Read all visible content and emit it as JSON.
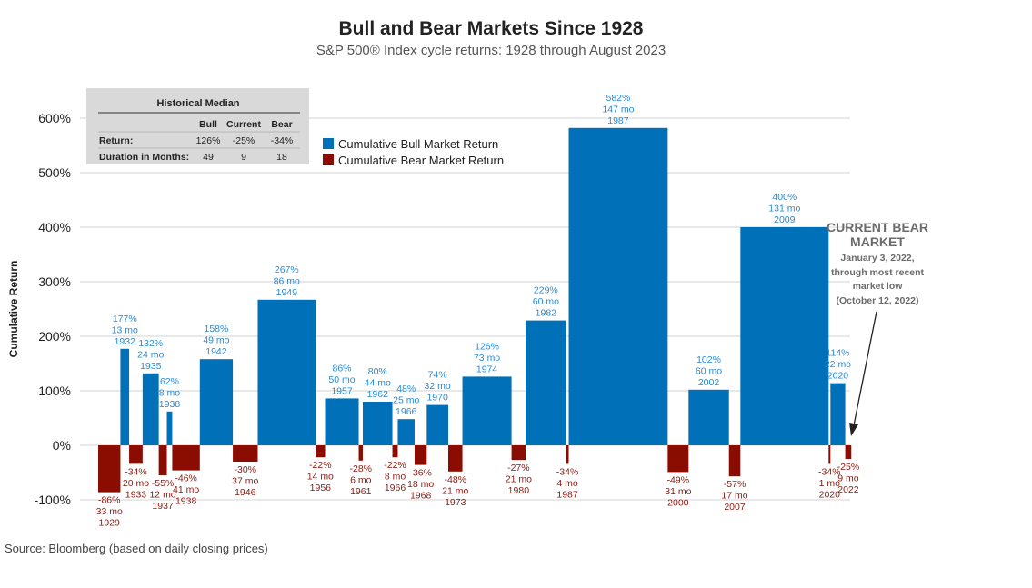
{
  "chart_data": {
    "type": "bar",
    "title": "Bull and Bear Markets Since 1928",
    "subtitle": "S&P 500® Index cycle returns: 1928 through August 2023",
    "ylabel": "Cumulative Return",
    "xlabel": "",
    "ylim": [
      -100,
      600
    ],
    "yticks": [
      "-100%",
      "0%",
      "100%",
      "200%",
      "300%",
      "400%",
      "500%",
      "600%"
    ],
    "grid": true,
    "legend_placement": "top-left",
    "legend": [
      {
        "name": "Cumulative Bull Market Return",
        "color": "#0070b8"
      },
      {
        "name": "Cumulative Bear Market Return",
        "color": "#8b0c00"
      }
    ],
    "colors": {
      "bull": "#0070b8",
      "bear": "#8b0c00",
      "bull_label": "#2a8ad4",
      "bear_label": "#8b1a10"
    },
    "periods": [
      {
        "kind": "bear",
        "return": -86,
        "months": 33,
        "year": 1929
      },
      {
        "kind": "bull",
        "return": 177,
        "months": 13,
        "year": 1932
      },
      {
        "kind": "bear",
        "return": -34,
        "months": 20,
        "year": 1933
      },
      {
        "kind": "bull",
        "return": 132,
        "months": 24,
        "year": 1935
      },
      {
        "kind": "bear",
        "return": -55,
        "months": 12,
        "year": 1937
      },
      {
        "kind": "bull",
        "return": 62,
        "months": 8,
        "year": 1938
      },
      {
        "kind": "bear",
        "return": -46,
        "months": 41,
        "year": 1938
      },
      {
        "kind": "bull",
        "return": 158,
        "months": 49,
        "year": 1942
      },
      {
        "kind": "bear",
        "return": -30,
        "months": 37,
        "year": 1946
      },
      {
        "kind": "bull",
        "return": 267,
        "months": 86,
        "year": 1949
      },
      {
        "kind": "bear",
        "return": -22,
        "months": 14,
        "year": 1956
      },
      {
        "kind": "bull",
        "return": 86,
        "months": 50,
        "year": 1957
      },
      {
        "kind": "bear",
        "return": -28,
        "months": 6,
        "year": 1961
      },
      {
        "kind": "bull",
        "return": 80,
        "months": 44,
        "year": 1962
      },
      {
        "kind": "bear",
        "return": -22,
        "months": 8,
        "year": 1966
      },
      {
        "kind": "bull",
        "return": 48,
        "months": 25,
        "year": 1966
      },
      {
        "kind": "bear",
        "return": -36,
        "months": 18,
        "year": 1968
      },
      {
        "kind": "bull",
        "return": 74,
        "months": 32,
        "year": 1970
      },
      {
        "kind": "bear",
        "return": -48,
        "months": 21,
        "year": 1973
      },
      {
        "kind": "bull",
        "return": 126,
        "months": 73,
        "year": 1974
      },
      {
        "kind": "bear",
        "return": -27,
        "months": 21,
        "year": 1980
      },
      {
        "kind": "bull",
        "return": 229,
        "months": 60,
        "year": 1982
      },
      {
        "kind": "bear",
        "return": -34,
        "months": 4,
        "year": 1987
      },
      {
        "kind": "bull",
        "return": 582,
        "months": 147,
        "year": 1987
      },
      {
        "kind": "bear",
        "return": -49,
        "months": 31,
        "year": 2000
      },
      {
        "kind": "bull",
        "return": 102,
        "months": 60,
        "year": 2002
      },
      {
        "kind": "bear",
        "return": -57,
        "months": 17,
        "year": 2007
      },
      {
        "kind": "bull",
        "return": 400,
        "months": 131,
        "year": 2009
      },
      {
        "kind": "bear",
        "return": -34,
        "months": 1,
        "year": 2020
      },
      {
        "kind": "bull",
        "return": 114,
        "months": 22,
        "year": 2020
      },
      {
        "kind": "bear",
        "return": -25,
        "months": 9,
        "year": 2022
      }
    ],
    "annotation": {
      "title_lines": [
        "CURRENT BEAR",
        "MARKET"
      ],
      "body_lines": [
        "January 3, 2022,",
        "through most recent",
        "market low",
        "(October 12, 2022)"
      ]
    },
    "median_table": {
      "title": "Historical Median",
      "columns": [
        "Bull",
        "Current",
        "Bear"
      ],
      "rows": [
        {
          "label": "Return:",
          "values": [
            "126%",
            "-25%",
            "-34%"
          ]
        },
        {
          "label": "Duration in Months:",
          "values": [
            "49",
            "9",
            "18"
          ]
        }
      ]
    },
    "source": "Source: Bloomberg (based on daily closing prices)"
  }
}
